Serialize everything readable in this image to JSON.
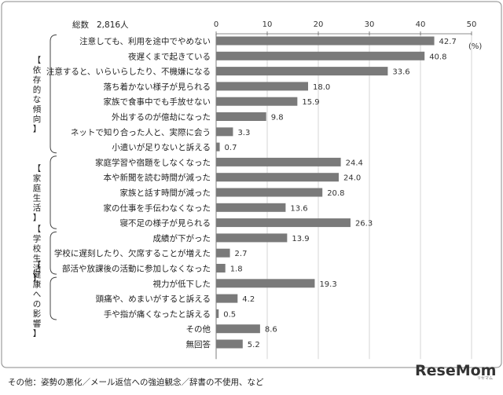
{
  "chart_data": {
    "type": "bar",
    "orientation": "horizontal",
    "total_label": "総数",
    "total_value": "2,816人",
    "unit": "(%)",
    "xlim": [
      0,
      50
    ],
    "xticks": [
      "0",
      "10",
      "20",
      "30",
      "40",
      "50"
    ],
    "groups": [
      {
        "name": "【依存的な傾向】",
        "start": 0,
        "end": 7
      },
      {
        "name": "【家庭生活】",
        "start": 8,
        "end": 12
      },
      {
        "name": "【学校生活】",
        "start": 13,
        "end": 15
      },
      {
        "name": "【健康への影響】",
        "start": 16,
        "end": 18
      }
    ],
    "categories": [
      "注意しても、利用を途中でやめない",
      "夜遅くまで起きている",
      "注意すると、いらいらしたり、不機嫌になる",
      "落ち着かない様子が見られる",
      "家族で食事中でも手放せない",
      "外出するのが億劫になった",
      "ネットで知り合った人と、実際に会う",
      "小遣いが足りないと訴える",
      "家庭学習や宿題をしなくなった",
      "本や新聞を読む時間が減った",
      "家族と話す時間が減った",
      "家の仕事を手伝わなくなった",
      "寝不足の様子が見られる",
      "成績が下がった",
      "学校に遅刻したり、欠席することが増えた",
      "部活や放課後の活動に参加しなくなった",
      "視力が低下した",
      "頭痛や、めまいがすると訴える",
      "手や指が痛くなったと訴える",
      "その他",
      "無回答"
    ],
    "values": [
      42.7,
      40.8,
      33.6,
      18.0,
      15.9,
      9.8,
      3.3,
      0.7,
      24.4,
      24.0,
      20.8,
      13.6,
      26.3,
      13.9,
      2.7,
      1.8,
      19.3,
      4.2,
      0.5,
      8.6,
      5.2
    ],
    "value_labels": [
      "42.7",
      "40.8",
      "33.6",
      "18.0",
      "15.9",
      "9.8",
      "3.3",
      "0.7",
      "24.4",
      "24.0",
      "20.8",
      "13.6",
      "26.3",
      "13.9",
      "2.7",
      "1.8",
      "19.3",
      "4.2",
      "0.5",
      "8.6",
      "5.2"
    ],
    "bar_color": "#7a7a7a",
    "footnote": "その他：姿勢の悪化／メール返信への強迫観念／辞書の不使用、など"
  },
  "logo": {
    "text": "ReseMom",
    "sub": "リセマム"
  }
}
